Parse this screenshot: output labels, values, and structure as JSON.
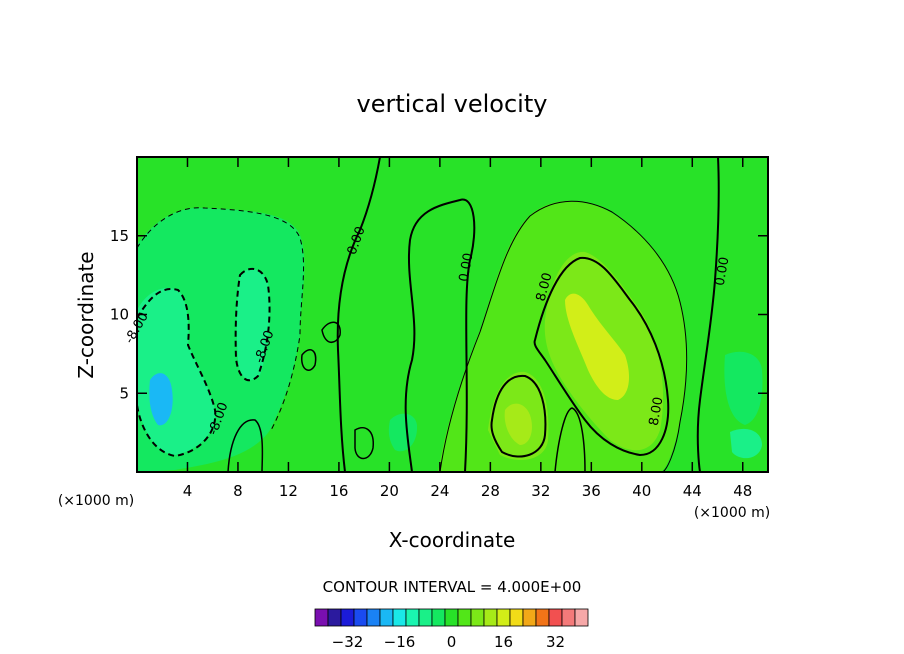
{
  "chart_data": {
    "type": "heatmap",
    "title": "vertical velocity",
    "xlabel": "X-coordinate",
    "ylabel": "Z-coordinate",
    "x_unit": "(×1000 m)",
    "z_unit": "(×1000 m)",
    "xlim": [
      0,
      50
    ],
    "ylim": [
      0,
      20
    ],
    "x_ticks": [
      "4",
      "8",
      "12",
      "16",
      "20",
      "24",
      "28",
      "32",
      "36",
      "40",
      "44",
      "48"
    ],
    "y_ticks": [
      "5",
      "10",
      "15"
    ],
    "contour_interval": "CONTOUR INTERVAL = 4.000E+00",
    "contour_labels": [
      "0.00",
      "0.00",
      "0.00",
      "8.00",
      "8.00",
      "-8.00",
      "-8.00",
      "-8.00"
    ],
    "colorbar": {
      "ticks": [
        "−32",
        "−16",
        "0",
        "16",
        "32"
      ],
      "tick_values": [
        -32,
        -16,
        0,
        16,
        32
      ],
      "levels": [
        -40,
        -36,
        -32,
        -28,
        -24,
        -20,
        -16,
        -12,
        -8,
        -4,
        0,
        4,
        8,
        12,
        16,
        20,
        24,
        28,
        32,
        36,
        40
      ],
      "colors": [
        "#7a0fb0",
        "#2b1a9e",
        "#1b1bd8",
        "#1a4bf0",
        "#1a82f5",
        "#1ab8f5",
        "#1ae8e8",
        "#1af5b0",
        "#1af088",
        "#14e860",
        "#28e228",
        "#52e618",
        "#7ce818",
        "#a6ea18",
        "#d2ee18",
        "#f2dc18",
        "#f2a818",
        "#f27418",
        "#f25050",
        "#f47a7a",
        "#f6a8a8"
      ]
    },
    "regions": {
      "background_value": 0,
      "updraft_band_center_x": 34,
      "updraft_max": 12,
      "downdraft_min": -10
    }
  }
}
